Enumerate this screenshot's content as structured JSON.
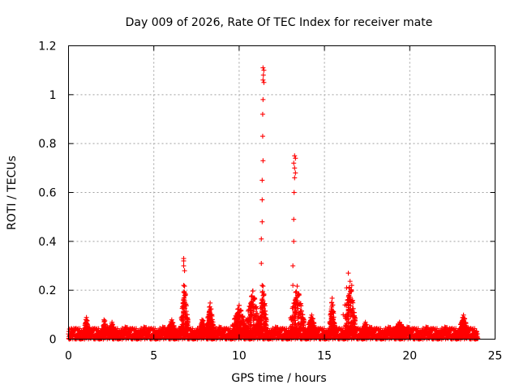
{
  "chart_data": {
    "type": "scatter",
    "title": "Day 009 of 2026, Rate Of TEC Index for receiver mate",
    "xlabel": "GPS time / hours",
    "ylabel": "ROTI / TECUs",
    "xlim": [
      0,
      25
    ],
    "ylim": [
      0,
      1.2
    ],
    "xticks": [
      0,
      5,
      10,
      15,
      20,
      25
    ],
    "xtick_labels": [
      "0",
      "5",
      "10",
      "15",
      "20",
      "25"
    ],
    "yticks": [
      0,
      0.2,
      0.4,
      0.6,
      0.8,
      1,
      1.2
    ],
    "ytick_labels": [
      "0",
      "0.2",
      "0.4",
      "0.6",
      "0.8",
      "1",
      "1.2"
    ],
    "grid": true,
    "marker": "+",
    "series": [
      {
        "name": "ROTI",
        "color": "#ff0000",
        "baseline": {
          "x_start": 0,
          "x_end": 24,
          "y_min": 0.0,
          "y_max": 0.05
        },
        "bursts": [
          {
            "x_start": 0.9,
            "x_end": 1.2,
            "y_max": 0.09
          },
          {
            "x_start": 2.0,
            "x_end": 2.2,
            "y_max": 0.09
          },
          {
            "x_start": 2.4,
            "x_end": 2.7,
            "y_max": 0.07
          },
          {
            "x_start": 5.8,
            "x_end": 6.3,
            "y_max": 0.08
          },
          {
            "x_start": 6.6,
            "x_end": 7.0,
            "y_max": 0.22
          },
          {
            "x_start": 7.7,
            "x_end": 8.0,
            "y_max": 0.09
          },
          {
            "x_start": 8.1,
            "x_end": 8.5,
            "y_max": 0.15
          },
          {
            "x_start": 9.6,
            "x_end": 10.4,
            "y_max": 0.14
          },
          {
            "x_start": 10.4,
            "x_end": 11.2,
            "y_max": 0.2
          },
          {
            "x_start": 11.2,
            "x_end": 11.6,
            "y_max": 0.22
          },
          {
            "x_start": 13.0,
            "x_end": 13.8,
            "y_max": 0.22
          },
          {
            "x_start": 14.0,
            "x_end": 14.5,
            "y_max": 0.1
          },
          {
            "x_start": 15.3,
            "x_end": 15.6,
            "y_max": 0.17
          },
          {
            "x_start": 16.2,
            "x_end": 16.8,
            "y_max": 0.24
          },
          {
            "x_start": 17.2,
            "x_end": 17.6,
            "y_max": 0.07
          },
          {
            "x_start": 19.0,
            "x_end": 19.8,
            "y_max": 0.07
          },
          {
            "x_start": 22.9,
            "x_end": 23.4,
            "y_max": 0.1
          }
        ],
        "outliers": [
          {
            "x": 6.75,
            "y": 0.33
          },
          {
            "x": 6.75,
            "y": 0.32
          },
          {
            "x": 6.75,
            "y": 0.3
          },
          {
            "x": 6.8,
            "y": 0.28
          },
          {
            "x": 6.75,
            "y": 0.22
          },
          {
            "x": 6.8,
            "y": 0.19
          },
          {
            "x": 11.4,
            "y": 1.11
          },
          {
            "x": 11.45,
            "y": 1.1
          },
          {
            "x": 11.42,
            "y": 1.08
          },
          {
            "x": 11.4,
            "y": 1.06
          },
          {
            "x": 11.45,
            "y": 1.05
          },
          {
            "x": 11.4,
            "y": 0.98
          },
          {
            "x": 11.38,
            "y": 0.92
          },
          {
            "x": 11.38,
            "y": 0.83
          },
          {
            "x": 11.4,
            "y": 0.73
          },
          {
            "x": 11.35,
            "y": 0.65
          },
          {
            "x": 11.35,
            "y": 0.57
          },
          {
            "x": 11.35,
            "y": 0.48
          },
          {
            "x": 11.3,
            "y": 0.41
          },
          {
            "x": 11.3,
            "y": 0.31
          },
          {
            "x": 11.35,
            "y": 0.22
          },
          {
            "x": 13.25,
            "y": 0.75
          },
          {
            "x": 13.3,
            "y": 0.74
          },
          {
            "x": 13.2,
            "y": 0.72
          },
          {
            "x": 13.25,
            "y": 0.7
          },
          {
            "x": 13.3,
            "y": 0.68
          },
          {
            "x": 13.25,
            "y": 0.66
          },
          {
            "x": 13.22,
            "y": 0.6
          },
          {
            "x": 13.2,
            "y": 0.49
          },
          {
            "x": 13.2,
            "y": 0.4
          },
          {
            "x": 13.15,
            "y": 0.3
          },
          {
            "x": 13.15,
            "y": 0.22
          },
          {
            "x": 16.4,
            "y": 0.27
          },
          {
            "x": 16.3,
            "y": 0.21
          },
          {
            "x": 16.6,
            "y": 0.22
          },
          {
            "x": 16.2,
            "y": 0.14
          },
          {
            "x": 16.1,
            "y": 0.1
          }
        ]
      }
    ]
  }
}
